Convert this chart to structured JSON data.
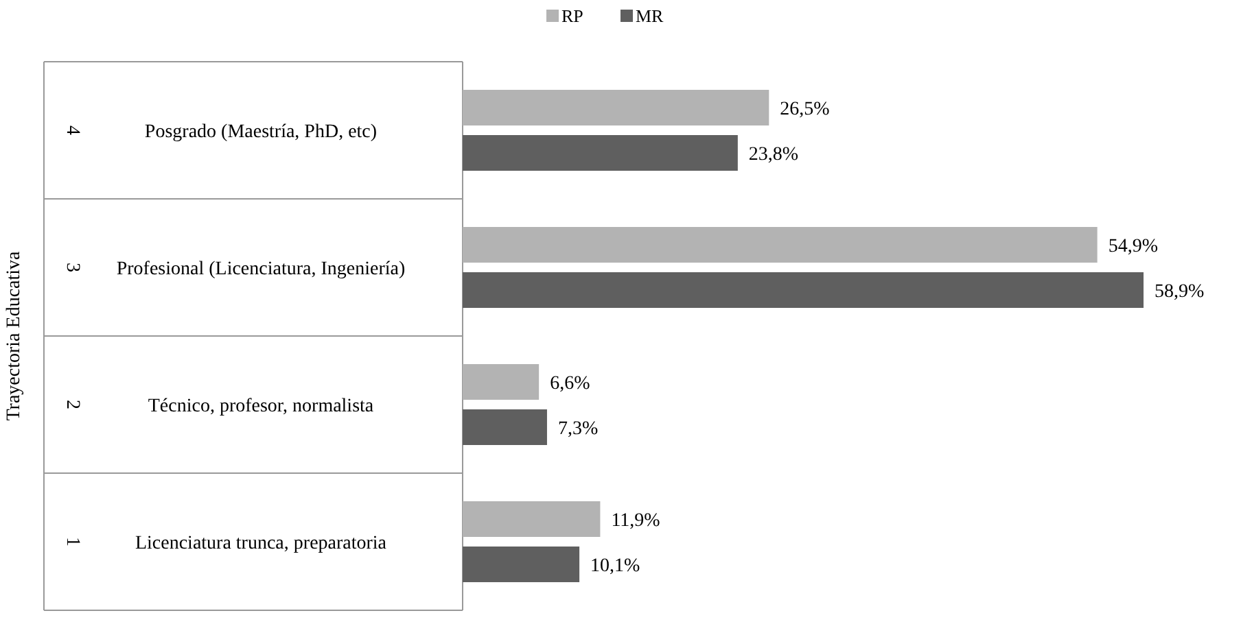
{
  "chart_data": {
    "type": "bar",
    "orientation": "horizontal",
    "ylabel": "Trayectoria Educativa",
    "legend": "top",
    "data_labels": false,
    "categories": [
      "Posgrado (Maestría, PhD, etc)",
      "Profesional (Licenciatura, Ingeniería)",
      "Técnico, profesor, normalista",
      "Licenciatura trunca, preparatoria"
    ],
    "annotations": [
      "4",
      "3",
      "2",
      "1"
    ],
    "series": [
      {
        "name": "RP",
        "color": "#b3b3b3",
        "values": [
          26.5,
          54.9,
          6.6,
          11.9
        ],
        "value_labels": [
          "26,5%",
          "54,9%",
          "6,6%",
          "11,9%"
        ]
      },
      {
        "name": "MR",
        "color": "#5f5f5f",
        "values": [
          23.8,
          58.9,
          7.3,
          10.1
        ],
        "value_labels": [
          "23,8%",
          "58,9%",
          "7,3%",
          "10,1%"
        ]
      }
    ]
  }
}
